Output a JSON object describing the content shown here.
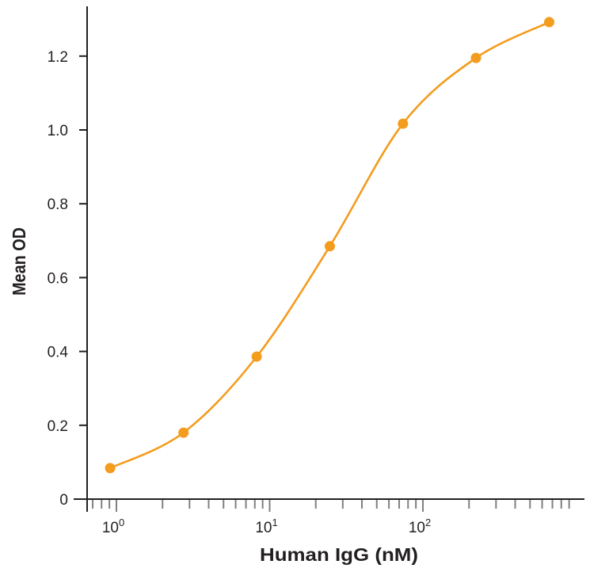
{
  "chart_data": {
    "type": "line",
    "title": "",
    "xlabel": "Human IgG (nM)",
    "ylabel": "Mean OD",
    "x_scale": "log",
    "xlim": [
      0.65,
      1100
    ],
    "ylim": [
      0,
      1.3
    ],
    "x_ticks": [
      {
        "value": 1,
        "base": "10",
        "exp": "0"
      },
      {
        "value": 10,
        "base": "10",
        "exp": "1"
      },
      {
        "value": 100,
        "base": "10",
        "exp": "2"
      }
    ],
    "y_ticks": [
      "0",
      "0.2",
      "0.4",
      "0.6",
      "0.8",
      "1.0",
      "1.2"
    ],
    "grid": false,
    "legend": "none",
    "series": [
      {
        "color": "#F39C1E",
        "x": [
          0.91,
          2.74,
          8.23,
          24.7,
          74.1,
          222,
          667
        ],
        "y": [
          0.084,
          0.18,
          0.386,
          0.685,
          1.017,
          1.195,
          1.292
        ]
      }
    ]
  }
}
